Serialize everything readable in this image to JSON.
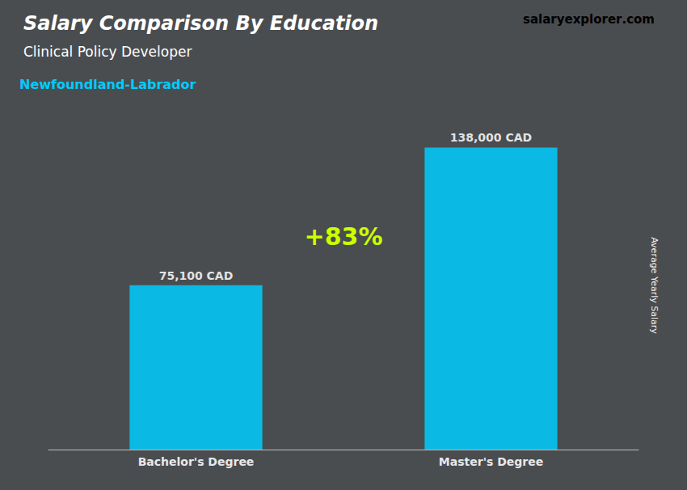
{
  "chart_data": {
    "type": "bar",
    "title": "Salary Comparison By Education",
    "subtitle": "Clinical Policy Developer",
    "ylabel": "Average Yearly Salary",
    "categories": [
      "Bachelor's Degree",
      "Master's Degree"
    ],
    "values": [
      75100,
      138000
    ],
    "value_labels": [
      "75,100 CAD",
      "138,000 CAD"
    ],
    "color": "#00CCFF",
    "data_labels": true,
    "ylim": [
      0,
      150000
    ],
    "tick_labels": "x",
    "grid": false,
    "annotations": [
      {
        "text": "Newfoundland-Labrador",
        "color": "#00CCFF"
      },
      {
        "text": "+83%",
        "color": "#CCFF00"
      }
    ],
    "watermark": [
      {
        "text": "salary"
      },
      {
        "text": "explorer",
        "color": "#00CCFF"
      },
      {
        "text": ".com"
      }
    ]
  }
}
